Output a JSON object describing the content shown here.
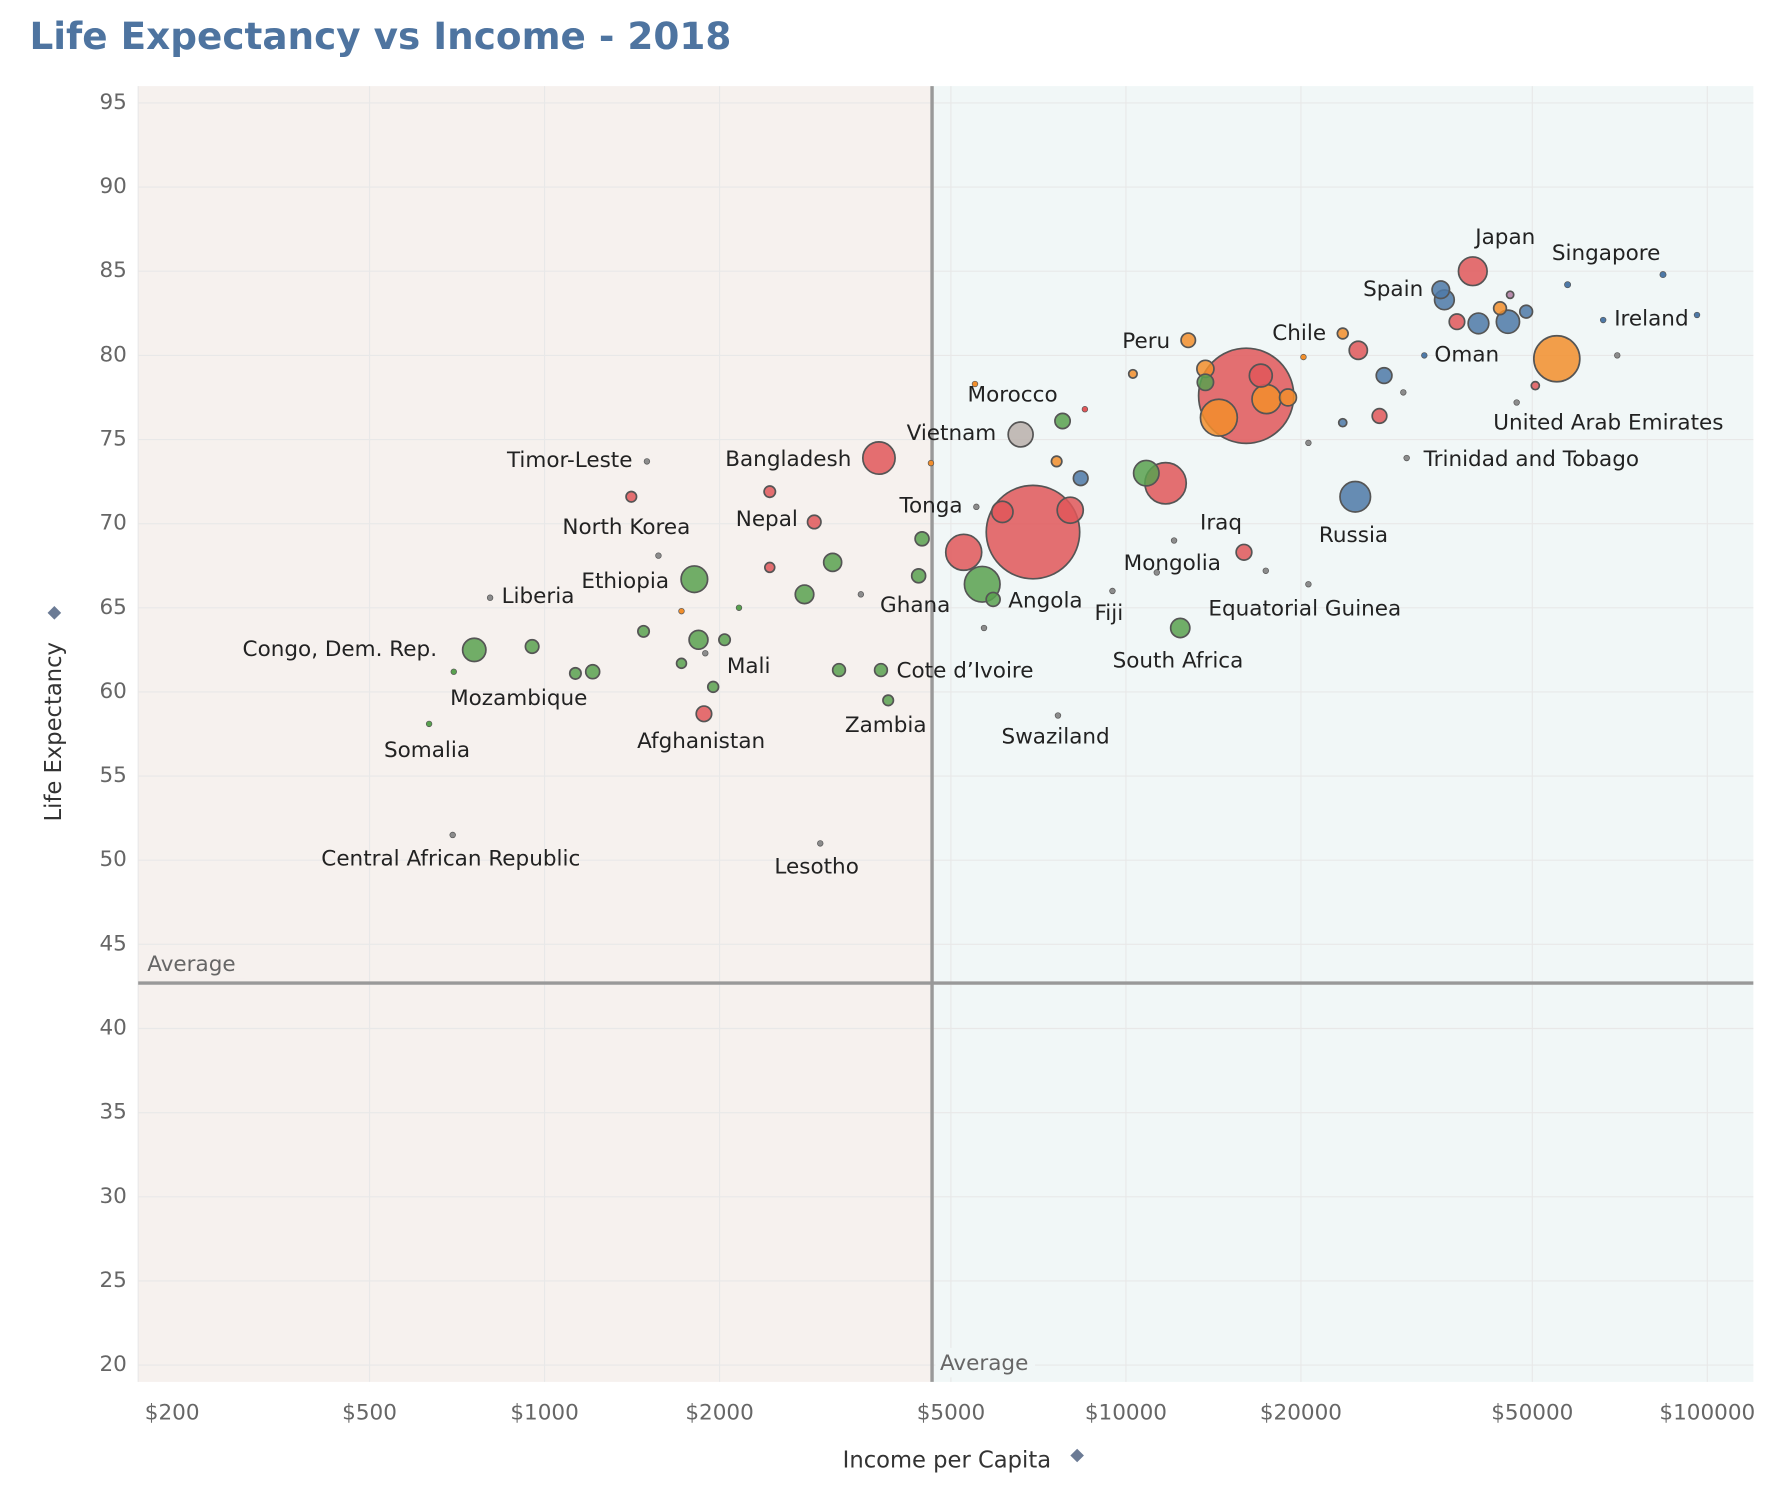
{
  "chart_data": {
    "type": "scatter",
    "title": "Life Expectancy vs Income - 2018",
    "x_label": "Income per Capita",
    "y_label": "Life Expectancy",
    "log_x": true,
    "grid": true,
    "xlim": [
      200,
      120000
    ],
    "ylim": [
      19,
      96
    ],
    "xticks": [
      {
        "value": 200,
        "label": "$200"
      },
      {
        "value": 500,
        "label": "$500"
      },
      {
        "value": 1000,
        "label": "$1000"
      },
      {
        "value": 2000,
        "label": "$2000"
      },
      {
        "value": 5000,
        "label": "$5000"
      },
      {
        "value": 10000,
        "label": "$10000"
      },
      {
        "value": 20000,
        "label": "$20000"
      },
      {
        "value": 50000,
        "label": "$50000"
      },
      {
        "value": 100000,
        "label": "$100000"
      }
    ],
    "yticks": [
      20,
      25,
      30,
      35,
      40,
      45,
      50,
      55,
      60,
      65,
      70,
      75,
      80,
      85,
      90,
      95
    ],
    "ref_lines": [
      {
        "axis": "x",
        "value": 4640,
        "label": "Average"
      },
      {
        "axis": "y",
        "value": 42.7,
        "label": "Average"
      }
    ],
    "labels": [
      "Japan",
      "Singapore",
      "Spain",
      "Ireland",
      "Peru",
      "Chile",
      "Oman",
      "Morocco",
      "United Arab Emirates",
      "Vietnam",
      "Trinidad and Tobago",
      "Timor-Leste",
      "Bangladesh",
      "Tonga",
      "Iraq",
      "Russia",
      "North Korea",
      "Nepal",
      "Mongolia",
      "Ethiopia",
      "Liberia",
      "Ghana",
      "Angola",
      "Fiji",
      "Equatorial Guinea",
      "Congo, Dem. Rep.",
      "Mali",
      "Cote d’Ivoire",
      "South Africa",
      "Mozambique",
      "Zambia",
      "Afghanistan",
      "Swaziland",
      "Somalia",
      "Central African Republic",
      "Lesotho",
      null,
      null,
      null,
      null,
      null,
      null,
      null,
      null,
      null,
      null,
      null,
      null,
      null,
      null,
      null,
      null,
      null,
      null,
      null,
      null,
      null,
      null,
      null,
      null,
      null,
      null,
      null,
      null,
      null,
      null,
      null,
      null,
      null,
      null,
      null,
      null,
      null,
      null,
      null,
      null,
      null,
      null,
      null,
      null,
      null,
      null,
      null,
      null,
      null,
      null,
      null,
      null,
      null,
      null,
      null,
      null
    ],
    "x": [
      39500,
      83900,
      34800,
      66200,
      12800,
      23600,
      32600,
      7780,
      50600,
      6590,
      30400,
      1500,
      3760,
      5530,
      15960,
      24800,
      1570,
      2910,
      12100,
      1810,
      806,
      4400,
      5910,
      9480,
      20600,
      757,
      1890,
      3790,
      12400,
      698,
      3900,
      1880,
      7640,
      633,
      695,
      2980,
      6920,
      16100,
      55100,
      14450,
      17450,
      11700,
      5260,
      5660,
      10840,
      8020,
      6130,
      17060,
      45400,
      40400,
      35300,
      25100,
      13700,
      13700,
      8360,
      3130,
      2800,
      1840,
      4460,
      19000,
      27800,
      27300,
      37100,
      48800,
      44000,
      45800,
      952,
      1210,
      1130,
      1480,
      2040,
      1950,
      1720,
      3210,
      2440,
      2440,
      1410,
      7600,
      10280,
      20200,
      23600,
      57500,
      4620,
      5500,
      96000,
      70000,
      1720,
      2160,
      3500,
      5700,
      47000,
      30000,
      20600,
      17400,
      11300,
      8500
    ],
    "y": [
      85.0,
      84.8,
      83.9,
      82.1,
      80.9,
      81.3,
      80.0,
      76.1,
      78.2,
      75.3,
      73.9,
      73.7,
      73.9,
      71.0,
      68.3,
      71.6,
      68.1,
      70.1,
      69.0,
      66.7,
      65.6,
      66.9,
      65.5,
      66.0,
      66.4,
      62.5,
      62.3,
      61.3,
      63.8,
      61.2,
      59.5,
      58.7,
      58.6,
      58.1,
      51.5,
      51.0,
      69.5,
      77.6,
      79.8,
      76.3,
      77.4,
      72.4,
      68.3,
      66.4,
      73.0,
      70.8,
      70.7,
      78.8,
      82.0,
      81.9,
      83.3,
      80.3,
      78.4,
      79.2,
      72.7,
      67.7,
      65.8,
      63.1,
      69.1,
      77.5,
      78.8,
      76.4,
      82.0,
      82.6,
      82.8,
      83.6,
      62.7,
      61.2,
      61.1,
      63.6,
      63.1,
      60.3,
      61.7,
      61.3,
      71.9,
      67.4,
      71.6,
      73.7,
      78.9,
      79.9,
      76.0,
      84.2,
      73.6,
      78.3,
      82.4,
      80.0,
      64.8,
      65.0,
      65.8,
      63.8,
      77.2,
      77.8,
      74.8,
      67.2,
      67.1,
      76.8
    ],
    "sizes": [
      127,
      6,
      47,
      5,
      32,
      18,
      5,
      36,
      10,
      96,
      1.4,
      1.3,
      161,
      0.1,
      38,
      144,
      1,
      28,
      3.2,
      109,
      1,
      30,
      30,
      1,
      1,
      84,
      1,
      25,
      57,
      3,
      17,
      37,
      1,
      5,
      1,
      1,
      1350,
      1400,
      327,
      210,
      130,
      264,
      200,
      196,
      100,
      105,
      70,
      81,
      83,
      66,
      60,
      51,
      41,
      45,
      33,
      50,
      53,
      55,
      30,
      44,
      38,
      33,
      37,
      25,
      25,
      8,
      28,
      30,
      20,
      20,
      20,
      18,
      15,
      25,
      20,
      15,
      17,
      17,
      11,
      3,
      10,
      6,
      2,
      2,
      1,
      1,
      3,
      4,
      1,
      1,
      1,
      1,
      1,
      1,
      1,
      1
    ],
    "colors": [
      "#e15759",
      "#4e79a7",
      "#4e79a7",
      "#4e79a7",
      "#f28e2b",
      "#f28e2b",
      "#4e79a7",
      "#59a14f",
      "#e15759",
      "#bab0ac",
      "#8c8c8c",
      "#8c8c8c",
      "#e15759",
      "#8c8c8c",
      "#e15759",
      "#4e79a7",
      "#8c8c8c",
      "#e15759",
      "#8c8c8c",
      "#59a14f",
      "#8c8c8c",
      "#59a14f",
      "#59a14f",
      "#8c8c8c",
      "#8c8c8c",
      "#59a14f",
      "#8c8c8c",
      "#59a14f",
      "#59a14f",
      "#59a14f",
      "#59a14f",
      "#e15759",
      "#8c8c8c",
      "#59a14f",
      "#8c8c8c",
      "#8c8c8c",
      "#e15759",
      "#e15759",
      "#f28e2b",
      "#f28e2b",
      "#f28e2b",
      "#e15759",
      "#e15759",
      "#59a14f",
      "#59a14f",
      "#e15759",
      "#e15759",
      "#e15759",
      "#4e79a7",
      "#4e79a7",
      "#4e79a7",
      "#e15759",
      "#59a14f",
      "#f28e2b",
      "#4e79a7",
      "#59a14f",
      "#59a14f",
      "#59a14f",
      "#59a14f",
      "#f28e2b",
      "#4e79a7",
      "#e15759",
      "#e15759",
      "#4e79a7",
      "#f28e2b",
      "#b07aa1",
      "#59a14f",
      "#59a14f",
      "#59a14f",
      "#59a14f",
      "#59a14f",
      "#59a14f",
      "#59a14f",
      "#59a14f",
      "#e15759",
      "#e15759",
      "#e15759",
      "#f28e2b",
      "#f28e2b",
      "#f28e2b",
      "#4e79a7",
      "#4e79a7",
      "#f28e2b",
      "#f28e2b",
      "#4e79a7",
      "#8c8c8c",
      "#f28e2b",
      "#59a14f",
      "#8c8c8c",
      "#8c8c8c",
      "#8c8c8c",
      "#8c8c8c",
      "#8c8c8c",
      "#8c8c8c",
      "#8c8c8c",
      "#e15759"
    ]
  }
}
